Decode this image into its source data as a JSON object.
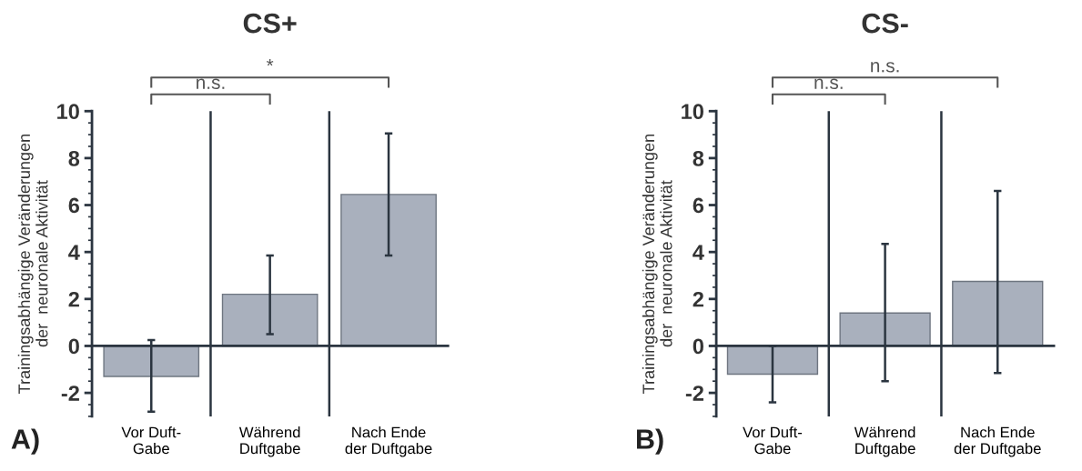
{
  "chart_data": [
    {
      "type": "bar",
      "title": "CS+",
      "ylabel": "Trainingsabhängige Veränderungen\nder  neuronale Aktivität",
      "categories": [
        "Vor Duft-\nGabe",
        "Während\nDuftgabe",
        "Nach Ende\nder Duftgabe"
      ],
      "values": [
        -1.3,
        2.2,
        6.45
      ],
      "errors": [
        [
          -2.8,
          0.25
        ],
        [
          0.5,
          3.85
        ],
        [
          3.85,
          9.05
        ]
      ],
      "color": "#a9b0bd",
      "ylim": [
        -3,
        10
      ],
      "yticks": [
        -2,
        0,
        2,
        4,
        6,
        8,
        10
      ],
      "grid": "x",
      "annotations": [
        "n.s.",
        "*",
        "A)"
      ]
    },
    {
      "type": "bar",
      "title": "CS-",
      "ylabel": "Trainingsabhängige Veränderungen\nder  neuronale Aktivität",
      "categories": [
        "Vor Duft-\nGabe",
        "Während\nDuftgabe",
        "Nach Ende\nder Duftgabe"
      ],
      "values": [
        -1.2,
        1.4,
        2.75
      ],
      "errors": [
        [
          -2.4,
          0.0
        ],
        [
          -1.5,
          4.35
        ],
        [
          -1.15,
          6.6
        ]
      ],
      "color": "#a9b0bd",
      "ylim": [
        -3,
        10
      ],
      "yticks": [
        -2,
        0,
        2,
        4,
        6,
        8,
        10
      ],
      "grid": "x",
      "annotations": [
        "n.s.",
        "n.s.",
        "B)"
      ]
    }
  ]
}
